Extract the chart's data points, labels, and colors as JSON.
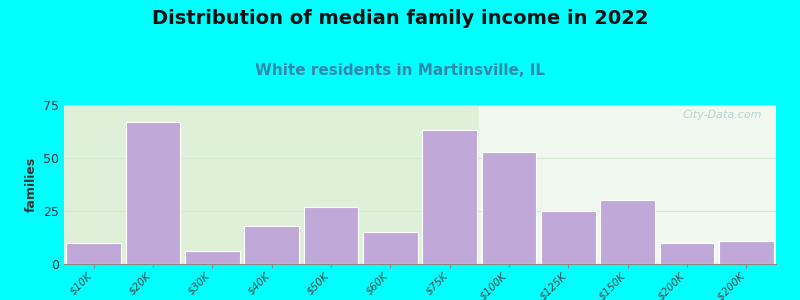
{
  "title": "Distribution of median family income in 2022",
  "subtitle": "White residents in Martinsville, IL",
  "ylabel": "families",
  "background_outer": "#00FFFF",
  "background_inner_left": "#dff0d8",
  "background_inner_right": "#eaf5ea",
  "bar_color": "#c0a8d8",
  "bar_edge_color": "#ffffff",
  "categories": [
    "$10K",
    "$20K",
    "$30K",
    "$40K",
    "$50K",
    "$60K",
    "$75K",
    "$100K",
    "$125K",
    "$150K",
    "$200K",
    "> $200K"
  ],
  "values": [
    10,
    67,
    6,
    18,
    27,
    15,
    63,
    53,
    25,
    30,
    10,
    11
  ],
  "ylim": [
    0,
    75
  ],
  "yticks": [
    0,
    25,
    50,
    75
  ],
  "watermark": "City-Data.com",
  "title_fontsize": 14,
  "subtitle_fontsize": 11,
  "subtitle_color": "#3388aa",
  "title_color": "#111111",
  "grid_color": "#e0e8d8",
  "bg_split_index": 6.5
}
